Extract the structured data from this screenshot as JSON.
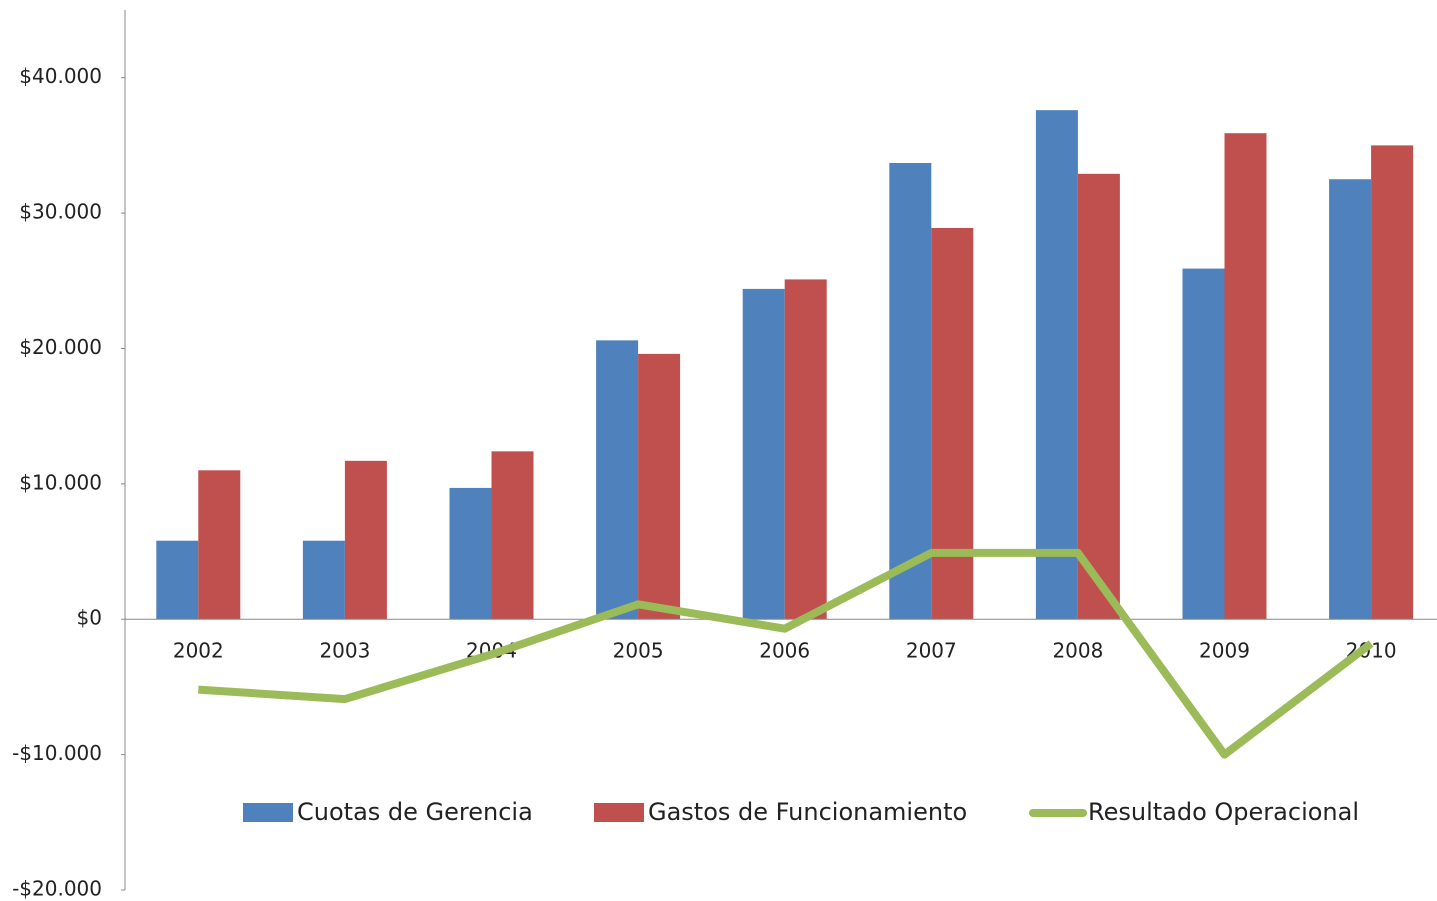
{
  "chart_data": {
    "type": "bar_line",
    "categories": [
      "2002",
      "2003",
      "2004",
      "2005",
      "2006",
      "2007",
      "2008",
      "2009",
      "2010"
    ],
    "series": [
      {
        "name": "Cuotas de Gerencia",
        "type": "bar",
        "color": "#4f81bd",
        "values": [
          5800,
          5800,
          9700,
          20600,
          24400,
          33700,
          37600,
          25900,
          32500
        ]
      },
      {
        "name": "Gastos de Funcionamiento",
        "type": "bar",
        "color": "#c0504d",
        "values": [
          11000,
          11700,
          12400,
          19600,
          25100,
          28900,
          32900,
          35900,
          35000
        ]
      },
      {
        "name": "Resultado Operacional",
        "type": "line",
        "color": "#9bbb59",
        "values": [
          -5200,
          -5900,
          -2600,
          1100,
          -700,
          4900,
          4900,
          -10000,
          -1800
        ]
      }
    ],
    "ylim": [
      -20000,
      45000
    ],
    "yticks": [
      {
        "value": -20000,
        "label": "-$20.000"
      },
      {
        "value": -10000,
        "label": "-$10.000"
      },
      {
        "value": 0,
        "label": "$0"
      },
      {
        "value": 10000,
        "label": "$10.000"
      },
      {
        "value": 20000,
        "label": "$20.000"
      },
      {
        "value": 30000,
        "label": "$30.000"
      },
      {
        "value": 40000,
        "label": "$40.000"
      }
    ],
    "grid": false,
    "legend": "bottom"
  }
}
